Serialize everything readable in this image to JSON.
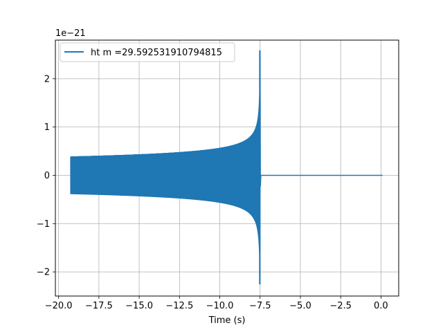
{
  "chart_data": {
    "type": "line",
    "title": "",
    "xlabel": "Time (s)",
    "ylabel": "",
    "y_scale_note": "1e−21",
    "xlim": [
      -20.2,
      1.1
    ],
    "ylim": [
      -2.5,
      2.8
    ],
    "x_ticks": [
      -20.0,
      -17.5,
      -15.0,
      -12.5,
      -10.0,
      -7.5,
      -5.0,
      -2.5,
      0.0
    ],
    "x_tick_labels": [
      "−20.0",
      "−17.5",
      "−15.0",
      "−12.5",
      "−10.0",
      "−7.5",
      "−5.0",
      "−2.5",
      "0.0"
    ],
    "y_ticks": [
      -2,
      -1,
      0,
      1,
      2
    ],
    "y_tick_labels": [
      "−2",
      "−1",
      "0",
      "1",
      "2"
    ],
    "grid": true,
    "legend_position": "top-left",
    "series": [
      {
        "name": "ht m =29.592531910794815",
        "color": "#1f77b4",
        "signal": {
          "start_time": -19.25,
          "merger_time": -7.5,
          "end_time": 0.1,
          "envelope_at_start": 0.38,
          "peak_positive": 2.58,
          "peak_negative": -2.25
        }
      }
    ]
  }
}
